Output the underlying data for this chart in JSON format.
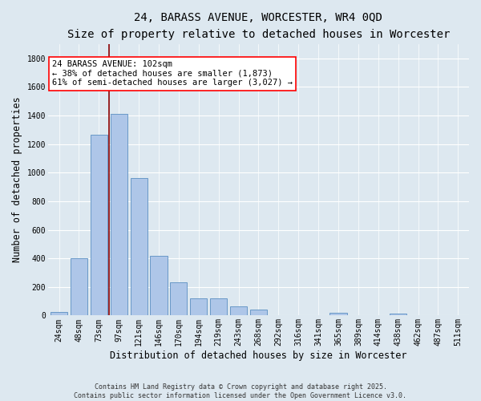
{
  "title": "24, BARASS AVENUE, WORCESTER, WR4 0QD",
  "subtitle": "Size of property relative to detached houses in Worcester",
  "xlabel": "Distribution of detached houses by size in Worcester",
  "ylabel": "Number of detached properties",
  "categories": [
    "24sqm",
    "48sqm",
    "73sqm",
    "97sqm",
    "121sqm",
    "146sqm",
    "170sqm",
    "194sqm",
    "219sqm",
    "243sqm",
    "268sqm",
    "292sqm",
    "316sqm",
    "341sqm",
    "365sqm",
    "389sqm",
    "414sqm",
    "438sqm",
    "462sqm",
    "487sqm",
    "511sqm"
  ],
  "values": [
    25,
    400,
    1265,
    1410,
    960,
    415,
    235,
    120,
    120,
    65,
    40,
    0,
    0,
    0,
    20,
    0,
    0,
    15,
    0,
    0,
    0
  ],
  "bar_color": "#aec6e8",
  "bar_edge_color": "#5a8fc2",
  "background_color": "#dde8f0",
  "grid_color": "#ffffff",
  "vline_color": "#8b0000",
  "vline_position": 2.5,
  "annotation_text": "24 BARASS AVENUE: 102sqm\n← 38% of detached houses are smaller (1,873)\n61% of semi-detached houses are larger (3,027) →",
  "ylim": [
    0,
    1900
  ],
  "yticks": [
    0,
    200,
    400,
    600,
    800,
    1000,
    1200,
    1400,
    1600,
    1800
  ],
  "footer": "Contains HM Land Registry data © Crown copyright and database right 2025.\nContains public sector information licensed under the Open Government Licence v3.0.",
  "title_fontsize": 10,
  "subtitle_fontsize": 8.5,
  "tick_fontsize": 7,
  "label_fontsize": 8.5,
  "annotation_fontsize": 7.5
}
